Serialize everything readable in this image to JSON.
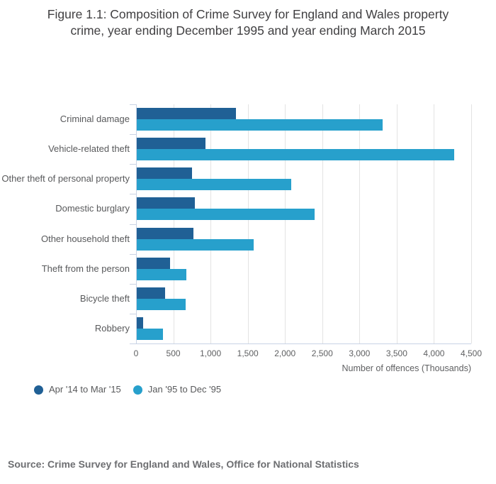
{
  "title": {
    "line1": "Figure 1.1: Composition of Crime Survey for England and Wales property",
    "line2": "crime, year ending December 1995 and year ending March 2015"
  },
  "source": "Source: Crime Survey for England and Wales, Office for National Statistics",
  "chart_data": {
    "type": "bar",
    "orientation": "horizontal",
    "title": "Figure 1.1: Composition of Crime Survey for England and Wales property crime, year ending December 1995 and year ending March 2015",
    "categories": [
      "Criminal damage",
      "Vehicle-related theft",
      "Other theft of personal property",
      "Domestic burglary",
      "Other household theft",
      "Theft from the person",
      "Bicycle theft",
      "Robbery"
    ],
    "series": [
      {
        "name": "Apr '14 to Mar '15",
        "color": "#206095",
        "values": [
          1330,
          920,
          740,
          780,
          760,
          450,
          380,
          90
        ]
      },
      {
        "name": "Jan '95 to Dec '95",
        "color": "#27a0cc",
        "values": [
          3300,
          4260,
          2070,
          2390,
          1570,
          670,
          660,
          350
        ]
      }
    ],
    "xlabel": "Number of offences (Thousands)",
    "ylabel": "",
    "xlim": [
      0,
      4500
    ],
    "x_tick_step": 500,
    "x_ticks": [
      "0",
      "500",
      "1,000",
      "1,500",
      "2,000",
      "2,500",
      "3,000",
      "3,500",
      "4,000",
      "4,500"
    ],
    "grid": true,
    "legend_position": "bottom-left"
  },
  "colors": {
    "axis": "#c9d3e5",
    "gridline": "#e3e3e3",
    "title_text": "#414042",
    "label_text": "#58595b",
    "source_text": "#6d6e71"
  }
}
